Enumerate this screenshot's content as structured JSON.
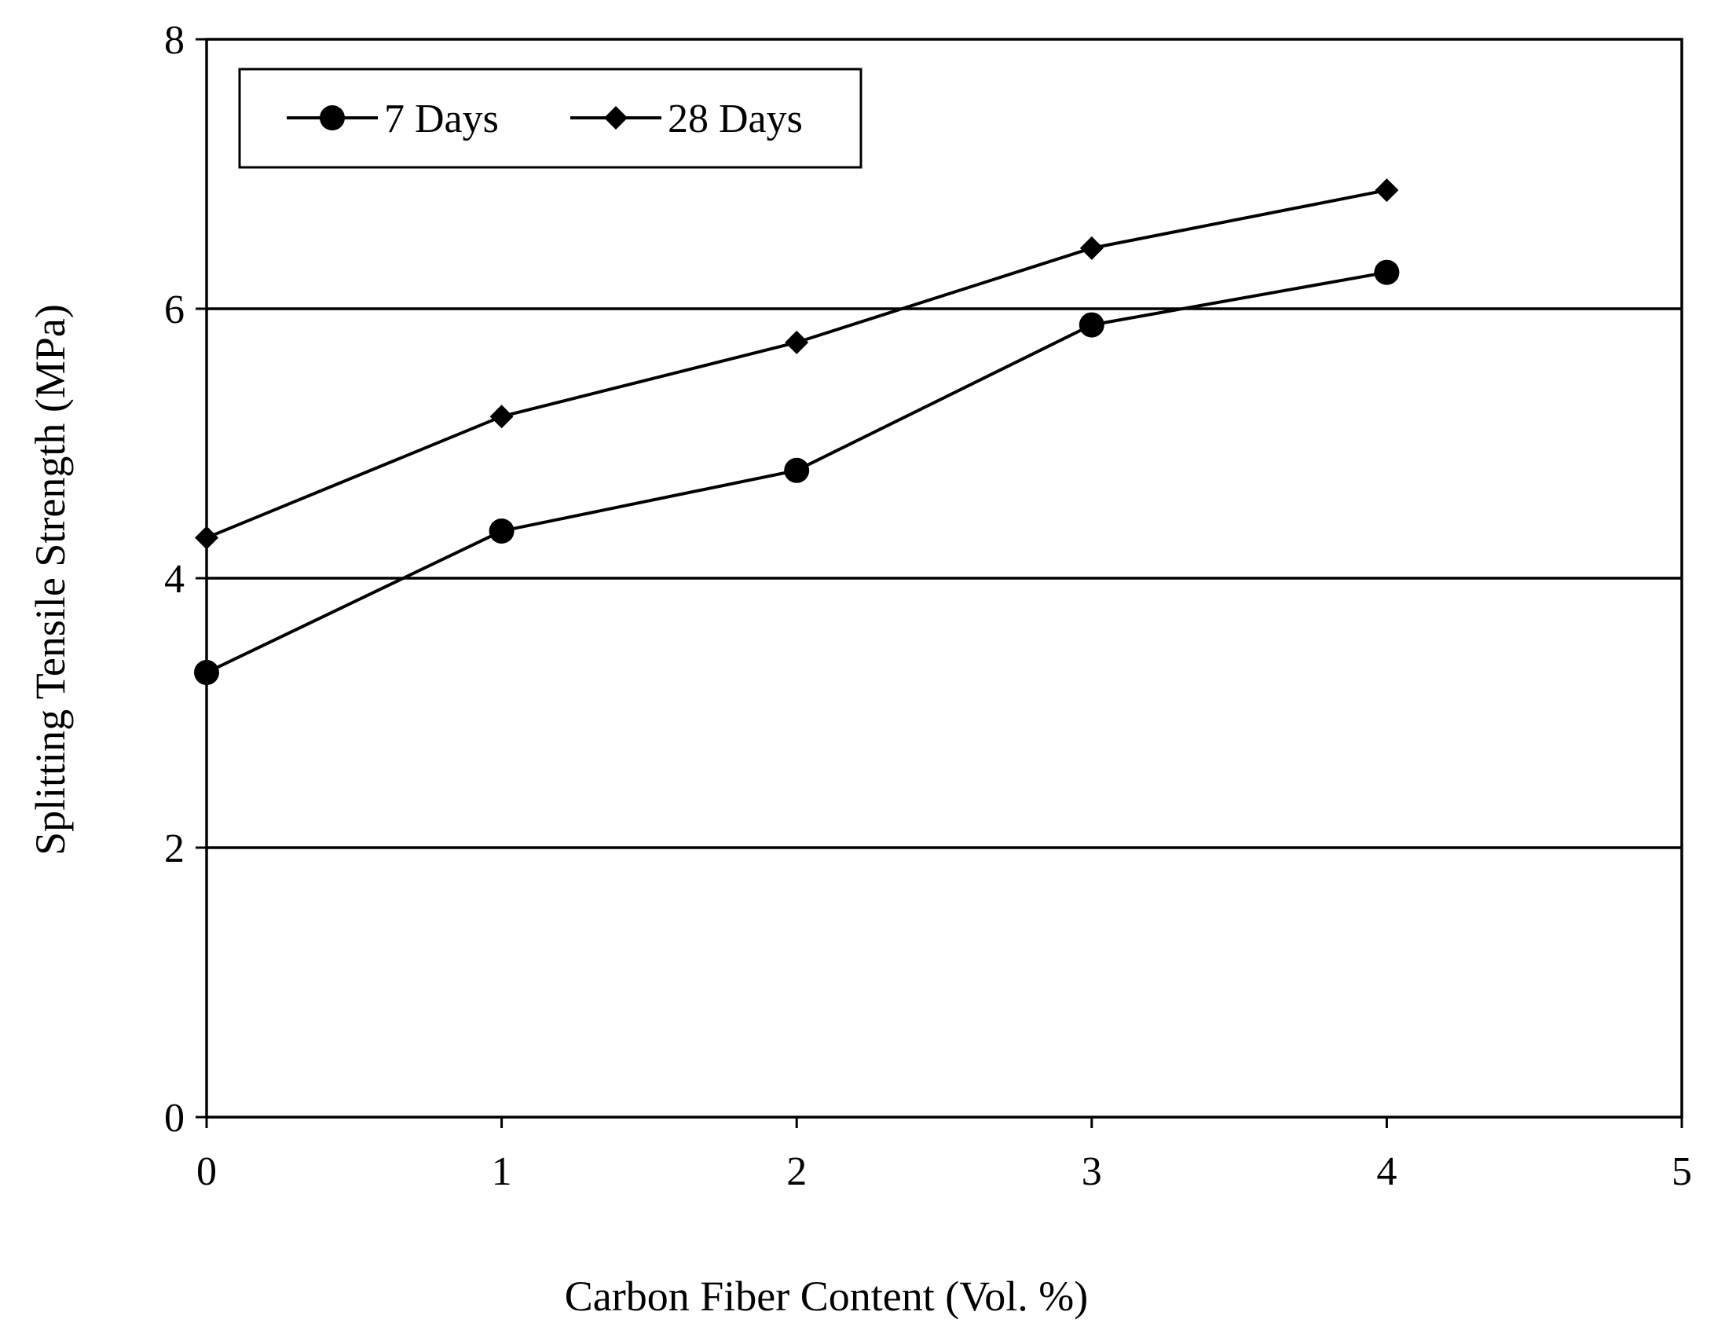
{
  "chart_data": {
    "type": "line",
    "title": "",
    "xlabel": "Carbon Fiber Content (Vol. %)",
    "ylabel": "Splitting Tensile Strength (MPa)",
    "xlim": [
      0,
      5
    ],
    "ylim": [
      0,
      8
    ],
    "xticks": [
      0,
      1,
      2,
      3,
      4,
      5
    ],
    "yticks": [
      0,
      2,
      4,
      6,
      8
    ],
    "grid": "horizontal",
    "legend_position": "top-left",
    "x": [
      0,
      1,
      2,
      3,
      4
    ],
    "series": [
      {
        "name": "7 Days",
        "marker": "circle",
        "values": [
          3.3,
          4.35,
          4.8,
          5.88,
          6.27
        ]
      },
      {
        "name": "28 Days",
        "marker": "diamond",
        "values": [
          4.3,
          5.2,
          5.75,
          6.45,
          6.88
        ]
      }
    ],
    "colors": {
      "line": "#000000",
      "grid": "#000000",
      "background": "#ffffff"
    }
  }
}
